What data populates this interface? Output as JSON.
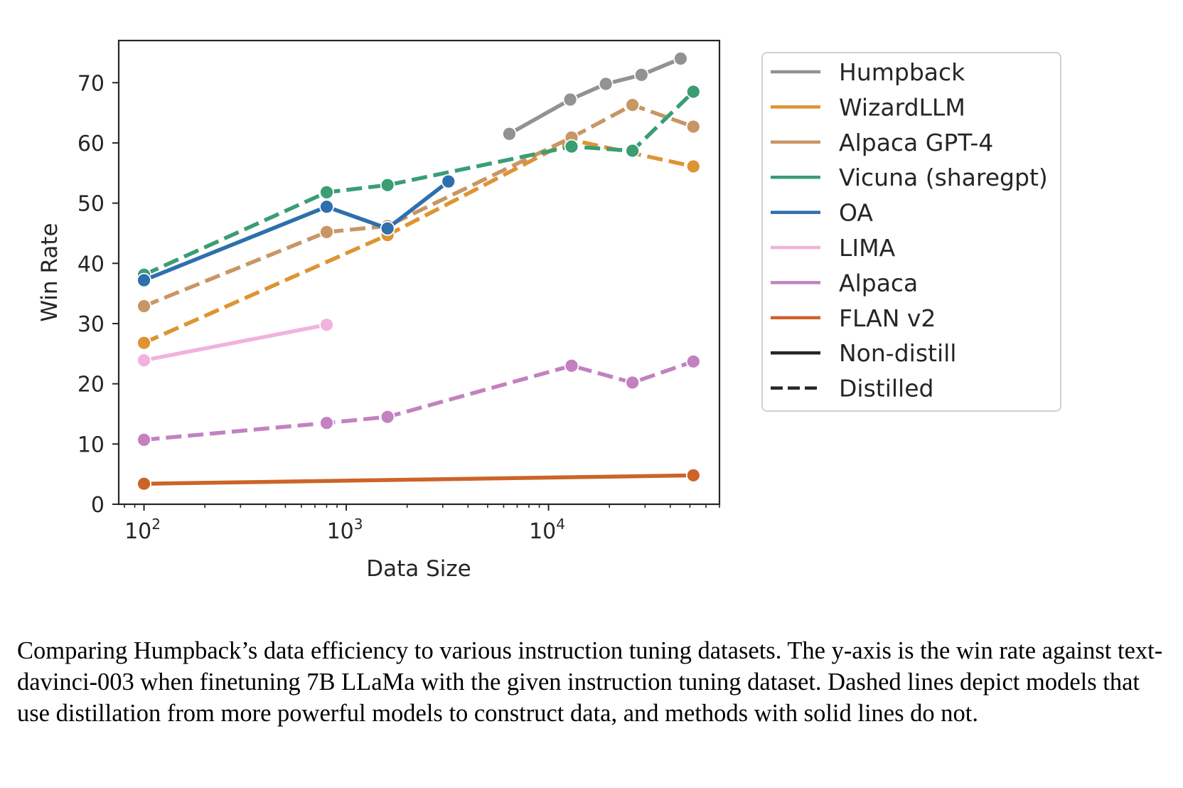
{
  "chart_data": {
    "type": "line",
    "xlabel": "Data Size",
    "ylabel": "Win Rate",
    "xscale": "log",
    "xlim": [
      75,
      70000
    ],
    "ylim": [
      0,
      77
    ],
    "x_ticks": [
      {
        "value": 100,
        "base": "10",
        "exp": "2"
      },
      {
        "value": 1000,
        "base": "10",
        "exp": "3"
      },
      {
        "value": 10000,
        "base": "10",
        "exp": "4"
      }
    ],
    "y_ticks": [
      0,
      10,
      20,
      30,
      40,
      50,
      60,
      70
    ],
    "legend_position": "outside right",
    "series": [
      {
        "name": "Humpback",
        "color": "#929292",
        "dash": false,
        "x": [
          6400,
          12800,
          19200,
          28800,
          45000
        ],
        "y": [
          61.5,
          67.2,
          69.8,
          71.3,
          74.0
        ]
      },
      {
        "name": "WizardLLM",
        "color": "#DE9432",
        "dash": true,
        "x": [
          100,
          1600,
          13000,
          52000
        ],
        "y": [
          26.8,
          44.7,
          60.5,
          56.1
        ]
      },
      {
        "name": "Alpaca GPT-4",
        "color": "#C89665",
        "dash": true,
        "x": [
          100,
          800,
          1600,
          13000,
          26000,
          52000
        ],
        "y": [
          32.9,
          45.2,
          46.2,
          60.9,
          66.3,
          62.7
        ]
      },
      {
        "name": "Vicuna (sharegpt)",
        "color": "#3A9D74",
        "dash": true,
        "x": [
          100,
          800,
          1600,
          13000,
          26000,
          52000
        ],
        "y": [
          38.1,
          51.8,
          53.0,
          59.4,
          58.7,
          68.5
        ]
      },
      {
        "name": "OA",
        "color": "#2E6FAD",
        "dash": false,
        "x": [
          100,
          800,
          1600,
          3200
        ],
        "y": [
          37.2,
          49.4,
          45.8,
          53.6
        ]
      },
      {
        "name": "LIMA",
        "color": "#F0B3DD",
        "dash": false,
        "x": [
          100,
          800
        ],
        "y": [
          23.9,
          29.8
        ]
      },
      {
        "name": "Alpaca",
        "color": "#C381C1",
        "dash": true,
        "x": [
          100,
          800,
          1600,
          13000,
          26000,
          52000
        ],
        "y": [
          10.7,
          13.5,
          14.5,
          23.0,
          20.2,
          23.7
        ]
      },
      {
        "name": "FLAN v2",
        "color": "#CC6428",
        "dash": false,
        "x": [
          100,
          52000
        ],
        "y": [
          3.4,
          4.8
        ]
      }
    ],
    "style_legend": [
      {
        "name": "Non-distill",
        "dash": false
      },
      {
        "name": "Distilled",
        "dash": true
      }
    ]
  },
  "caption": "Comparing Humpback’s data efficiency to various instruction tuning datasets. The y-axis is the win rate against text-davinci-003 when finetuning 7B LLaMa with the given instruction tuning dataset. Dashed lines depict models that use distillation from more powerful models to construct data, and methods with solid lines do not."
}
